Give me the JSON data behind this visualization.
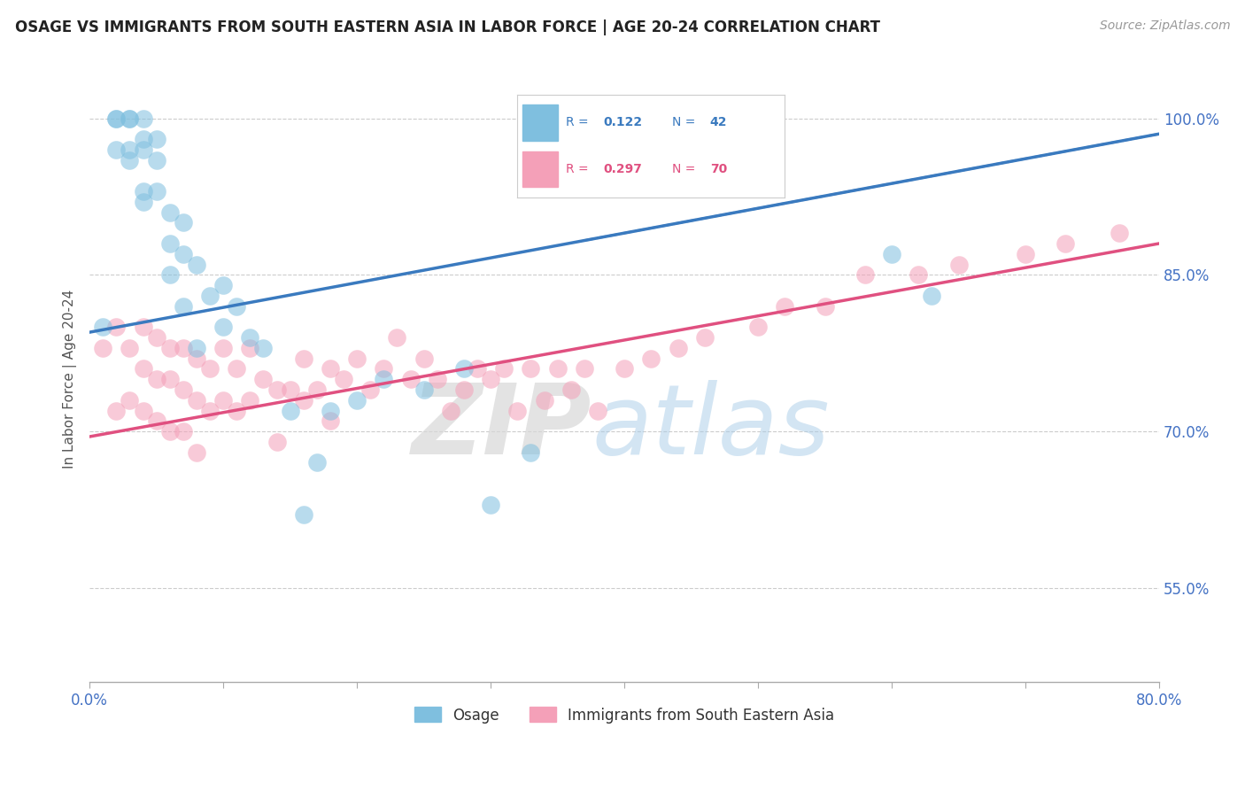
{
  "title": "OSAGE VS IMMIGRANTS FROM SOUTH EASTERN ASIA IN LABOR FORCE | AGE 20-24 CORRELATION CHART",
  "source": "Source: ZipAtlas.com",
  "ylabel": "In Labor Force | Age 20-24",
  "xlim": [
    0.0,
    0.8
  ],
  "ylim": [
    0.46,
    1.04
  ],
  "xticks": [
    0.0,
    0.1,
    0.2,
    0.3,
    0.4,
    0.5,
    0.6,
    0.7,
    0.8
  ],
  "ytick_positions": [
    0.55,
    0.7,
    0.85,
    1.0
  ],
  "ytick_labels": [
    "55.0%",
    "70.0%",
    "85.0%",
    "100.0%"
  ],
  "blue_color": "#7fbfdf",
  "pink_color": "#f4a0b8",
  "blue_line_color": "#3a7abf",
  "pink_line_color": "#e05080",
  "legend_label_blue": "Osage",
  "legend_label_pink": "Immigrants from South Eastern Asia",
  "tick_label_color": "#4472c4",
  "grid_color": "#cccccc",
  "background_color": "#ffffff",
  "title_color": "#222222",
  "blue_R": "0.122",
  "blue_N": "42",
  "pink_R": "0.297",
  "pink_N": "70",
  "blue_trend_x": [
    0.0,
    0.8
  ],
  "blue_trend_y": [
    0.795,
    0.985
  ],
  "pink_trend_x": [
    0.0,
    0.8
  ],
  "pink_trend_y": [
    0.695,
    0.88
  ],
  "blue_scatter_x": [
    0.01,
    0.02,
    0.02,
    0.02,
    0.03,
    0.03,
    0.03,
    0.03,
    0.04,
    0.04,
    0.04,
    0.04,
    0.04,
    0.05,
    0.05,
    0.05,
    0.06,
    0.06,
    0.06,
    0.07,
    0.07,
    0.07,
    0.08,
    0.08,
    0.09,
    0.1,
    0.1,
    0.11,
    0.12,
    0.13,
    0.15,
    0.16,
    0.17,
    0.18,
    0.2,
    0.22,
    0.25,
    0.28,
    0.3,
    0.33,
    0.6,
    0.63
  ],
  "blue_scatter_y": [
    0.8,
    1.0,
    1.0,
    0.97,
    1.0,
    1.0,
    0.97,
    0.96,
    1.0,
    0.98,
    0.97,
    0.93,
    0.92,
    0.98,
    0.96,
    0.93,
    0.91,
    0.88,
    0.85,
    0.9,
    0.87,
    0.82,
    0.86,
    0.78,
    0.83,
    0.84,
    0.8,
    0.82,
    0.79,
    0.78,
    0.72,
    0.62,
    0.67,
    0.72,
    0.73,
    0.75,
    0.74,
    0.76,
    0.63,
    0.68,
    0.87,
    0.83
  ],
  "pink_scatter_x": [
    0.01,
    0.02,
    0.02,
    0.03,
    0.03,
    0.04,
    0.04,
    0.04,
    0.05,
    0.05,
    0.05,
    0.06,
    0.06,
    0.06,
    0.07,
    0.07,
    0.07,
    0.08,
    0.08,
    0.08,
    0.09,
    0.09,
    0.1,
    0.1,
    0.11,
    0.11,
    0.12,
    0.12,
    0.13,
    0.14,
    0.14,
    0.15,
    0.16,
    0.16,
    0.17,
    0.18,
    0.18,
    0.19,
    0.2,
    0.21,
    0.22,
    0.23,
    0.24,
    0.25,
    0.26,
    0.27,
    0.28,
    0.29,
    0.3,
    0.31,
    0.32,
    0.33,
    0.34,
    0.35,
    0.36,
    0.37,
    0.38,
    0.4,
    0.42,
    0.44,
    0.46,
    0.5,
    0.52,
    0.55,
    0.58,
    0.62,
    0.65,
    0.7,
    0.73,
    0.77
  ],
  "pink_scatter_y": [
    0.78,
    0.8,
    0.72,
    0.78,
    0.73,
    0.8,
    0.76,
    0.72,
    0.79,
    0.75,
    0.71,
    0.78,
    0.75,
    0.7,
    0.78,
    0.74,
    0.7,
    0.77,
    0.73,
    0.68,
    0.76,
    0.72,
    0.78,
    0.73,
    0.76,
    0.72,
    0.78,
    0.73,
    0.75,
    0.74,
    0.69,
    0.74,
    0.77,
    0.73,
    0.74,
    0.76,
    0.71,
    0.75,
    0.77,
    0.74,
    0.76,
    0.79,
    0.75,
    0.77,
    0.75,
    0.72,
    0.74,
    0.76,
    0.75,
    0.76,
    0.72,
    0.76,
    0.73,
    0.76,
    0.74,
    0.76,
    0.72,
    0.76,
    0.77,
    0.78,
    0.79,
    0.8,
    0.82,
    0.82,
    0.85,
    0.85,
    0.86,
    0.87,
    0.88,
    0.89
  ]
}
